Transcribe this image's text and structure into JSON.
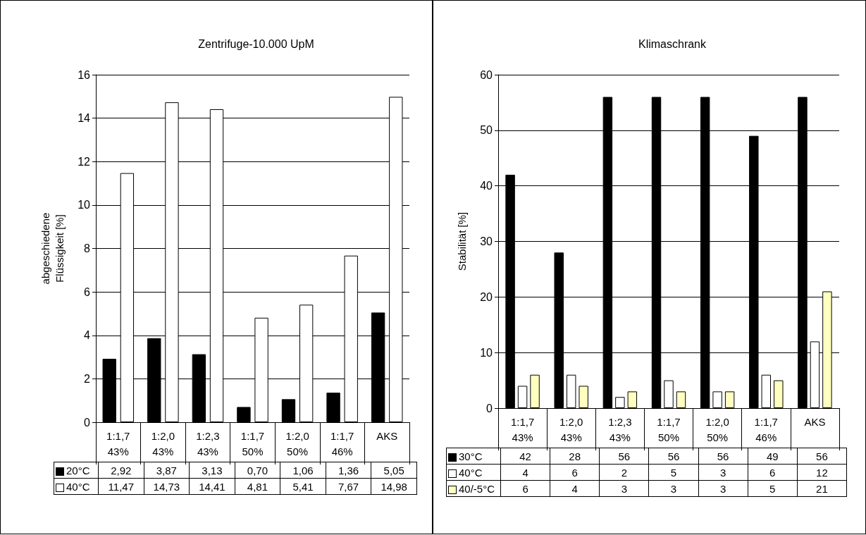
{
  "chart_data": [
    {
      "type": "bar",
      "title": "Zentrifuge-10.000 UpM",
      "ylabel": "abgeschiedene Flüssigkeit [%]",
      "categories": [
        "1:1,7\n43%",
        "1:2,0\n43%",
        "1:2,3\n43%",
        "1:1,7\n50%",
        "1:2,0\n50%",
        "1:1,7\n46%",
        "AKS"
      ],
      "ylim": [
        0,
        16
      ],
      "yticks": [
        0,
        2,
        4,
        6,
        8,
        10,
        12,
        14,
        16
      ],
      "grid": "y",
      "legend": "bottom",
      "series": [
        {
          "name": "20°C",
          "color": "#000000",
          "values": [
            2.92,
            3.87,
            3.13,
            0.7,
            1.06,
            1.36,
            5.05
          ],
          "value_labels": [
            "2,92",
            "3,87",
            "3,13",
            "0,70",
            "1,06",
            "1,36",
            "5,05"
          ]
        },
        {
          "name": "40°C",
          "color": "#ffffff",
          "values": [
            11.47,
            14.73,
            14.41,
            4.81,
            5.41,
            7.67,
            14.98
          ],
          "value_labels": [
            "11,47",
            "14,73",
            "14,41",
            "4,81",
            "5,41",
            "7,67",
            "14,98"
          ]
        }
      ]
    },
    {
      "type": "bar",
      "title": "Klimaschrank",
      "ylabel": "Stabilität [%]",
      "categories": [
        "1:1,7\n43%",
        "1:2,0\n43%",
        "1:2,3\n43%",
        "1:1,7\n50%",
        "1:2,0\n50%",
        "1:1,7\n46%",
        "AKS"
      ],
      "ylim": [
        0,
        60
      ],
      "yticks": [
        0,
        10,
        20,
        30,
        40,
        50,
        60
      ],
      "grid": "y",
      "legend": "bottom",
      "series": [
        {
          "name": "30°C",
          "color": "#000000",
          "values": [
            42,
            28,
            56,
            56,
            56,
            49,
            56
          ],
          "value_labels": [
            "42",
            "28",
            "56",
            "56",
            "56",
            "49",
            "56"
          ]
        },
        {
          "name": "40°C",
          "color": "#ffffff",
          "values": [
            4,
            6,
            2,
            5,
            3,
            6,
            12
          ],
          "value_labels": [
            "4",
            "6",
            "2",
            "5",
            "3",
            "6",
            "12"
          ]
        },
        {
          "name": "40/-5°C",
          "color": "#ffffc0",
          "values": [
            6,
            4,
            3,
            3,
            3,
            5,
            21
          ],
          "value_labels": [
            "6",
            "4",
            "3",
            "3",
            "3",
            "5",
            "21"
          ]
        }
      ]
    }
  ]
}
